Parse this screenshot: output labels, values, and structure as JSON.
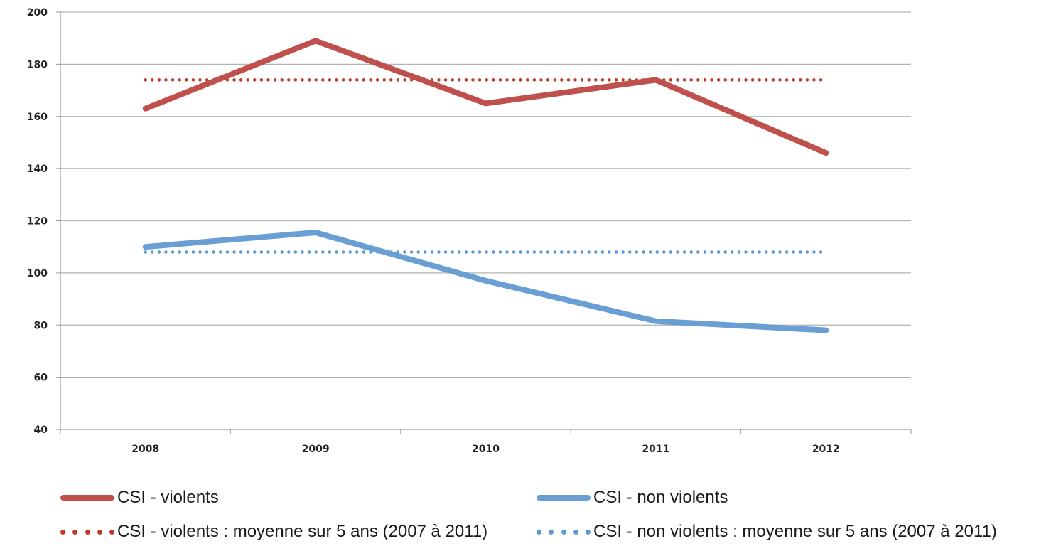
{
  "chart_data": {
    "type": "line",
    "categories": [
      "2008",
      "2009",
      "2010",
      "2011",
      "2012"
    ],
    "ylim": [
      40,
      200
    ],
    "yticks": [
      40,
      60,
      80,
      100,
      120,
      140,
      160,
      180,
      200
    ],
    "grid": true,
    "legend_position": "bottom",
    "series": [
      {
        "name": "CSI - violents",
        "values": [
          163,
          189,
          165,
          174,
          146
        ],
        "color": "#c0504d",
        "style": "solid"
      },
      {
        "name": "CSI - non violents",
        "values": [
          110,
          115.5,
          97,
          81.5,
          78
        ],
        "color": "#6a9fd6",
        "style": "solid"
      },
      {
        "name": "CSI - violents : moyenne sur 5 ans (2007 à 2011)",
        "values": [
          174,
          174,
          174,
          174,
          174
        ],
        "color": "#c0392b",
        "style": "dotted"
      },
      {
        "name": "CSI - non violents : moyenne sur 5 ans (2007 à 2011)",
        "values": [
          108,
          108,
          108,
          108,
          108
        ],
        "color": "#5b9bd5",
        "style": "dotted"
      }
    ]
  }
}
